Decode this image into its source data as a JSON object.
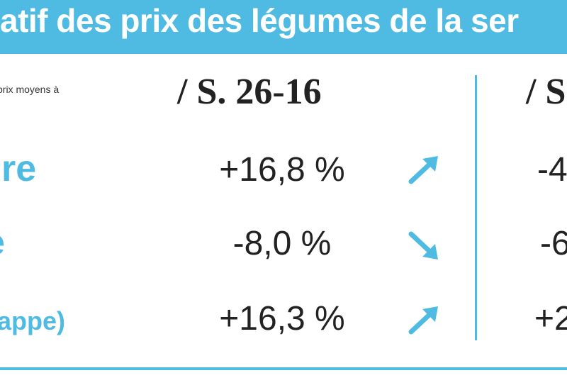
{
  "header": {
    "title": "atif des prix des légumes de la ser"
  },
  "table": {
    "note": "prix moyens à",
    "columns": [
      "/ S. 26-16",
      "/ S"
    ],
    "rows": [
      [
        "re",
        "+16,8 %",
        "-4"
      ],
      [
        "e",
        "-8,0 %",
        "-6"
      ],
      [
        "appe)",
        "+16,3 %",
        "+2"
      ]
    ]
  }
}
